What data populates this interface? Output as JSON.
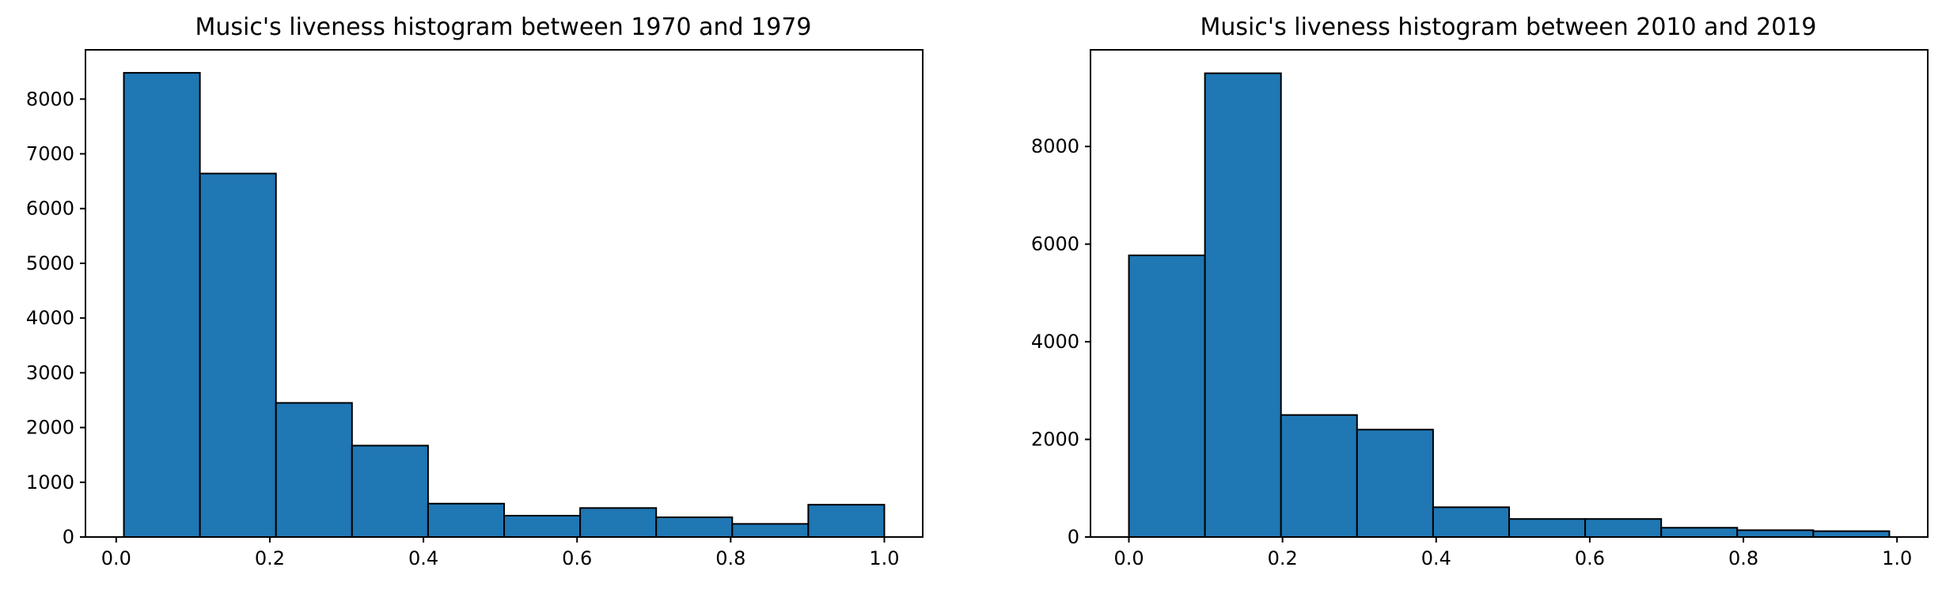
{
  "chart_data": [
    {
      "type": "bar",
      "title": "Music's liveness histogram between 1970 and 1979",
      "xlabel": "",
      "ylabel": "",
      "xlim": [
        -0.04,
        1.05
      ],
      "ylim": [
        0,
        8900
      ],
      "grid": false,
      "bin_edges": [
        0.01,
        0.109,
        0.208,
        0.307,
        0.406,
        0.505,
        0.604,
        0.703,
        0.802,
        0.901,
        1.0
      ],
      "values": [
        8480,
        6640,
        2450,
        1670,
        610,
        390,
        530,
        360,
        240,
        590
      ],
      "xticks": [
        0.0,
        0.2,
        0.4,
        0.6,
        0.8,
        1.0
      ],
      "xtick_labels": [
        "0.0",
        "0.2",
        "0.4",
        "0.6",
        "0.8",
        "1.0"
      ],
      "yticks": [
        0,
        1000,
        2000,
        3000,
        4000,
        5000,
        6000,
        7000,
        8000
      ],
      "ytick_labels": [
        "0",
        "1000",
        "2000",
        "3000",
        "4000",
        "5000",
        "6000",
        "7000",
        "8000"
      ],
      "bar_color": "#1f77b4",
      "edge_color": "#000000"
    },
    {
      "type": "bar",
      "title": "Music's liveness histogram between 2010 and 2019",
      "xlabel": "",
      "ylabel": "",
      "xlim": [
        -0.05,
        1.04
      ],
      "ylim": [
        0,
        9980
      ],
      "grid": false,
      "bin_edges": [
        0.0,
        0.099,
        0.198,
        0.297,
        0.396,
        0.495,
        0.594,
        0.693,
        0.792,
        0.891,
        0.99
      ],
      "values": [
        5770,
        9500,
        2500,
        2200,
        610,
        370,
        370,
        190,
        140,
        120
      ],
      "xticks": [
        0.0,
        0.2,
        0.4,
        0.6,
        0.8,
        1.0
      ],
      "xtick_labels": [
        "0.0",
        "0.2",
        "0.4",
        "0.6",
        "0.8",
        "1.0"
      ],
      "yticks": [
        0,
        2000,
        4000,
        6000,
        8000
      ],
      "ytick_labels": [
        "0",
        "2000",
        "4000",
        "6000",
        "8000"
      ],
      "bar_color": "#1f77b4",
      "edge_color": "#000000"
    }
  ]
}
